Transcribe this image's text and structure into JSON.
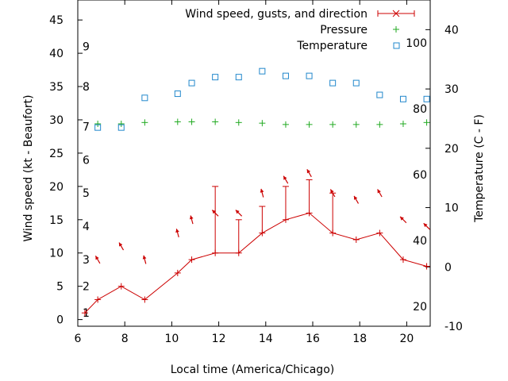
{
  "chart_data": {
    "type": "line",
    "xlabel": "Local time (America/Chicago)",
    "ylabel": "Wind speed (kt - Beaufort)",
    "y2label": "Temperature (C - F)",
    "xlim": [
      6,
      21
    ],
    "ylim": [
      -1,
      48
    ],
    "y2lim": [
      -10,
      45
    ],
    "x_ticks": [
      "6",
      "8",
      "10",
      "12",
      "14",
      "16",
      "18",
      "20"
    ],
    "y_ticks": [
      "0",
      "5",
      "10",
      "15",
      "20",
      "25",
      "30",
      "35",
      "40",
      "45"
    ],
    "y2_ticks_c": [
      "-10",
      "0",
      "10",
      "20",
      "30",
      "40"
    ],
    "y2_ticks_f": [
      "20",
      "40",
      "60",
      "80",
      "100"
    ],
    "beaufort_labels": [
      "1",
      "2",
      "3",
      "4",
      "5",
      "6",
      "7",
      "8",
      "9"
    ],
    "grid": false,
    "legend_position": "top-right",
    "legend": {
      "wind": "Wind speed, gusts, and direction",
      "pressure": "Pressure",
      "temperature": "Temperature"
    },
    "colors": {
      "wind": "#cc0000",
      "pressure": "#22aa22",
      "temperature": "#2288cc"
    },
    "series": [
      {
        "name": "Wind speed, gusts, and direction",
        "x": [
          6.3,
          6.85,
          7.85,
          8.85,
          10.25,
          10.85,
          11.85,
          12.85,
          13.85,
          14.85,
          15.85,
          16.85,
          17.85,
          18.85,
          19.85,
          20.85
        ],
        "values": [
          1,
          3,
          5,
          3,
          7,
          9,
          10,
          10,
          13,
          15,
          16,
          13,
          12,
          13,
          9,
          8
        ],
        "gusts": [
          null,
          null,
          null,
          null,
          null,
          null,
          20,
          15,
          17,
          20,
          21,
          19,
          null,
          null,
          null,
          null
        ],
        "direction_deg": [
          null,
          330,
          330,
          345,
          345,
          345,
          315,
          315,
          345,
          330,
          330,
          330,
          330,
          330,
          315,
          315
        ]
      },
      {
        "name": "Pressure",
        "x": [
          6.85,
          7.85,
          8.85,
          10.25,
          10.85,
          11.85,
          12.85,
          13.85,
          14.85,
          15.85,
          16.85,
          17.85,
          18.85,
          19.85,
          20.85
        ],
        "values": [
          29.4,
          29.4,
          29.6,
          29.7,
          29.7,
          29.7,
          29.6,
          29.5,
          29.3,
          29.3,
          29.3,
          29.3,
          29.3,
          29.4,
          29.6
        ]
      },
      {
        "name": "Temperature",
        "x": [
          6.85,
          7.85,
          8.85,
          10.25,
          10.85,
          11.85,
          12.85,
          13.85,
          14.85,
          15.85,
          16.85,
          17.85,
          18.85,
          19.85,
          20.85
        ],
        "values": [
          23.5,
          23.5,
          28.5,
          29.2,
          31,
          32,
          32,
          33,
          32.2,
          32.2,
          31,
          31,
          29,
          28.3,
          28.3
        ]
      }
    ]
  }
}
